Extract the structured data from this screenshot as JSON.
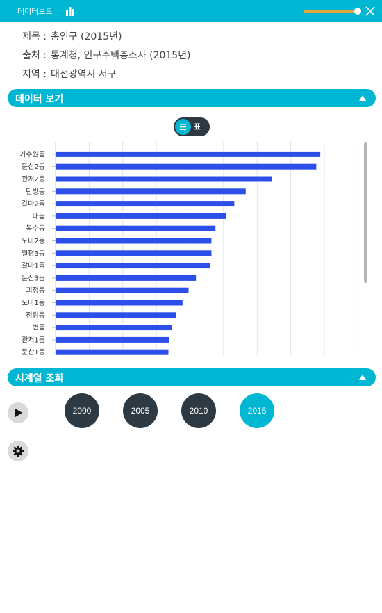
{
  "header": {
    "title": "데이터보드",
    "icons": [
      "bar-chart-icon",
      "close-icon"
    ]
  },
  "meta": {
    "title_label": "제목 :",
    "title_value": "총인구 (2015년)",
    "source_label": "출처 :",
    "source_value": "통계청, 인구주택총조사 (2015년)",
    "region_label": "지역 :",
    "region_value": "대전광역시 서구"
  },
  "data_section": {
    "label": "데이터 보기"
  },
  "view_toggle": {
    "table_label": "표"
  },
  "chart_data": {
    "type": "bar",
    "orientation": "horizontal",
    "categories": [
      "가수원동",
      "둔산2동",
      "관저2동",
      "탄방동",
      "갈마2동",
      "내동",
      "복수동",
      "도마2동",
      "월평3동",
      "갈마1동",
      "둔산3동",
      "괴정동",
      "도마1동",
      "정림동",
      "변동",
      "관저1동",
      "둔산1동"
    ],
    "values": [
      39400,
      38800,
      32200,
      28300,
      26600,
      25400,
      23800,
      23200,
      23200,
      23000,
      20900,
      19800,
      18900,
      17900,
      17300,
      16900,
      16800
    ],
    "xlim": [
      0,
      46000
    ],
    "grid": true,
    "bar_color": "#2b4fe8"
  },
  "timeseries_section": {
    "label": "시계열 조회"
  },
  "years": [
    {
      "label": "2000",
      "active": false
    },
    {
      "label": "2005",
      "active": false
    },
    {
      "label": "2010",
      "active": false
    },
    {
      "label": "2015",
      "active": true
    }
  ],
  "colors": {
    "accent": "#00b7d3",
    "dark": "#2d3a44",
    "bar": "#2b4fe8",
    "slider": "#e8a53a"
  }
}
